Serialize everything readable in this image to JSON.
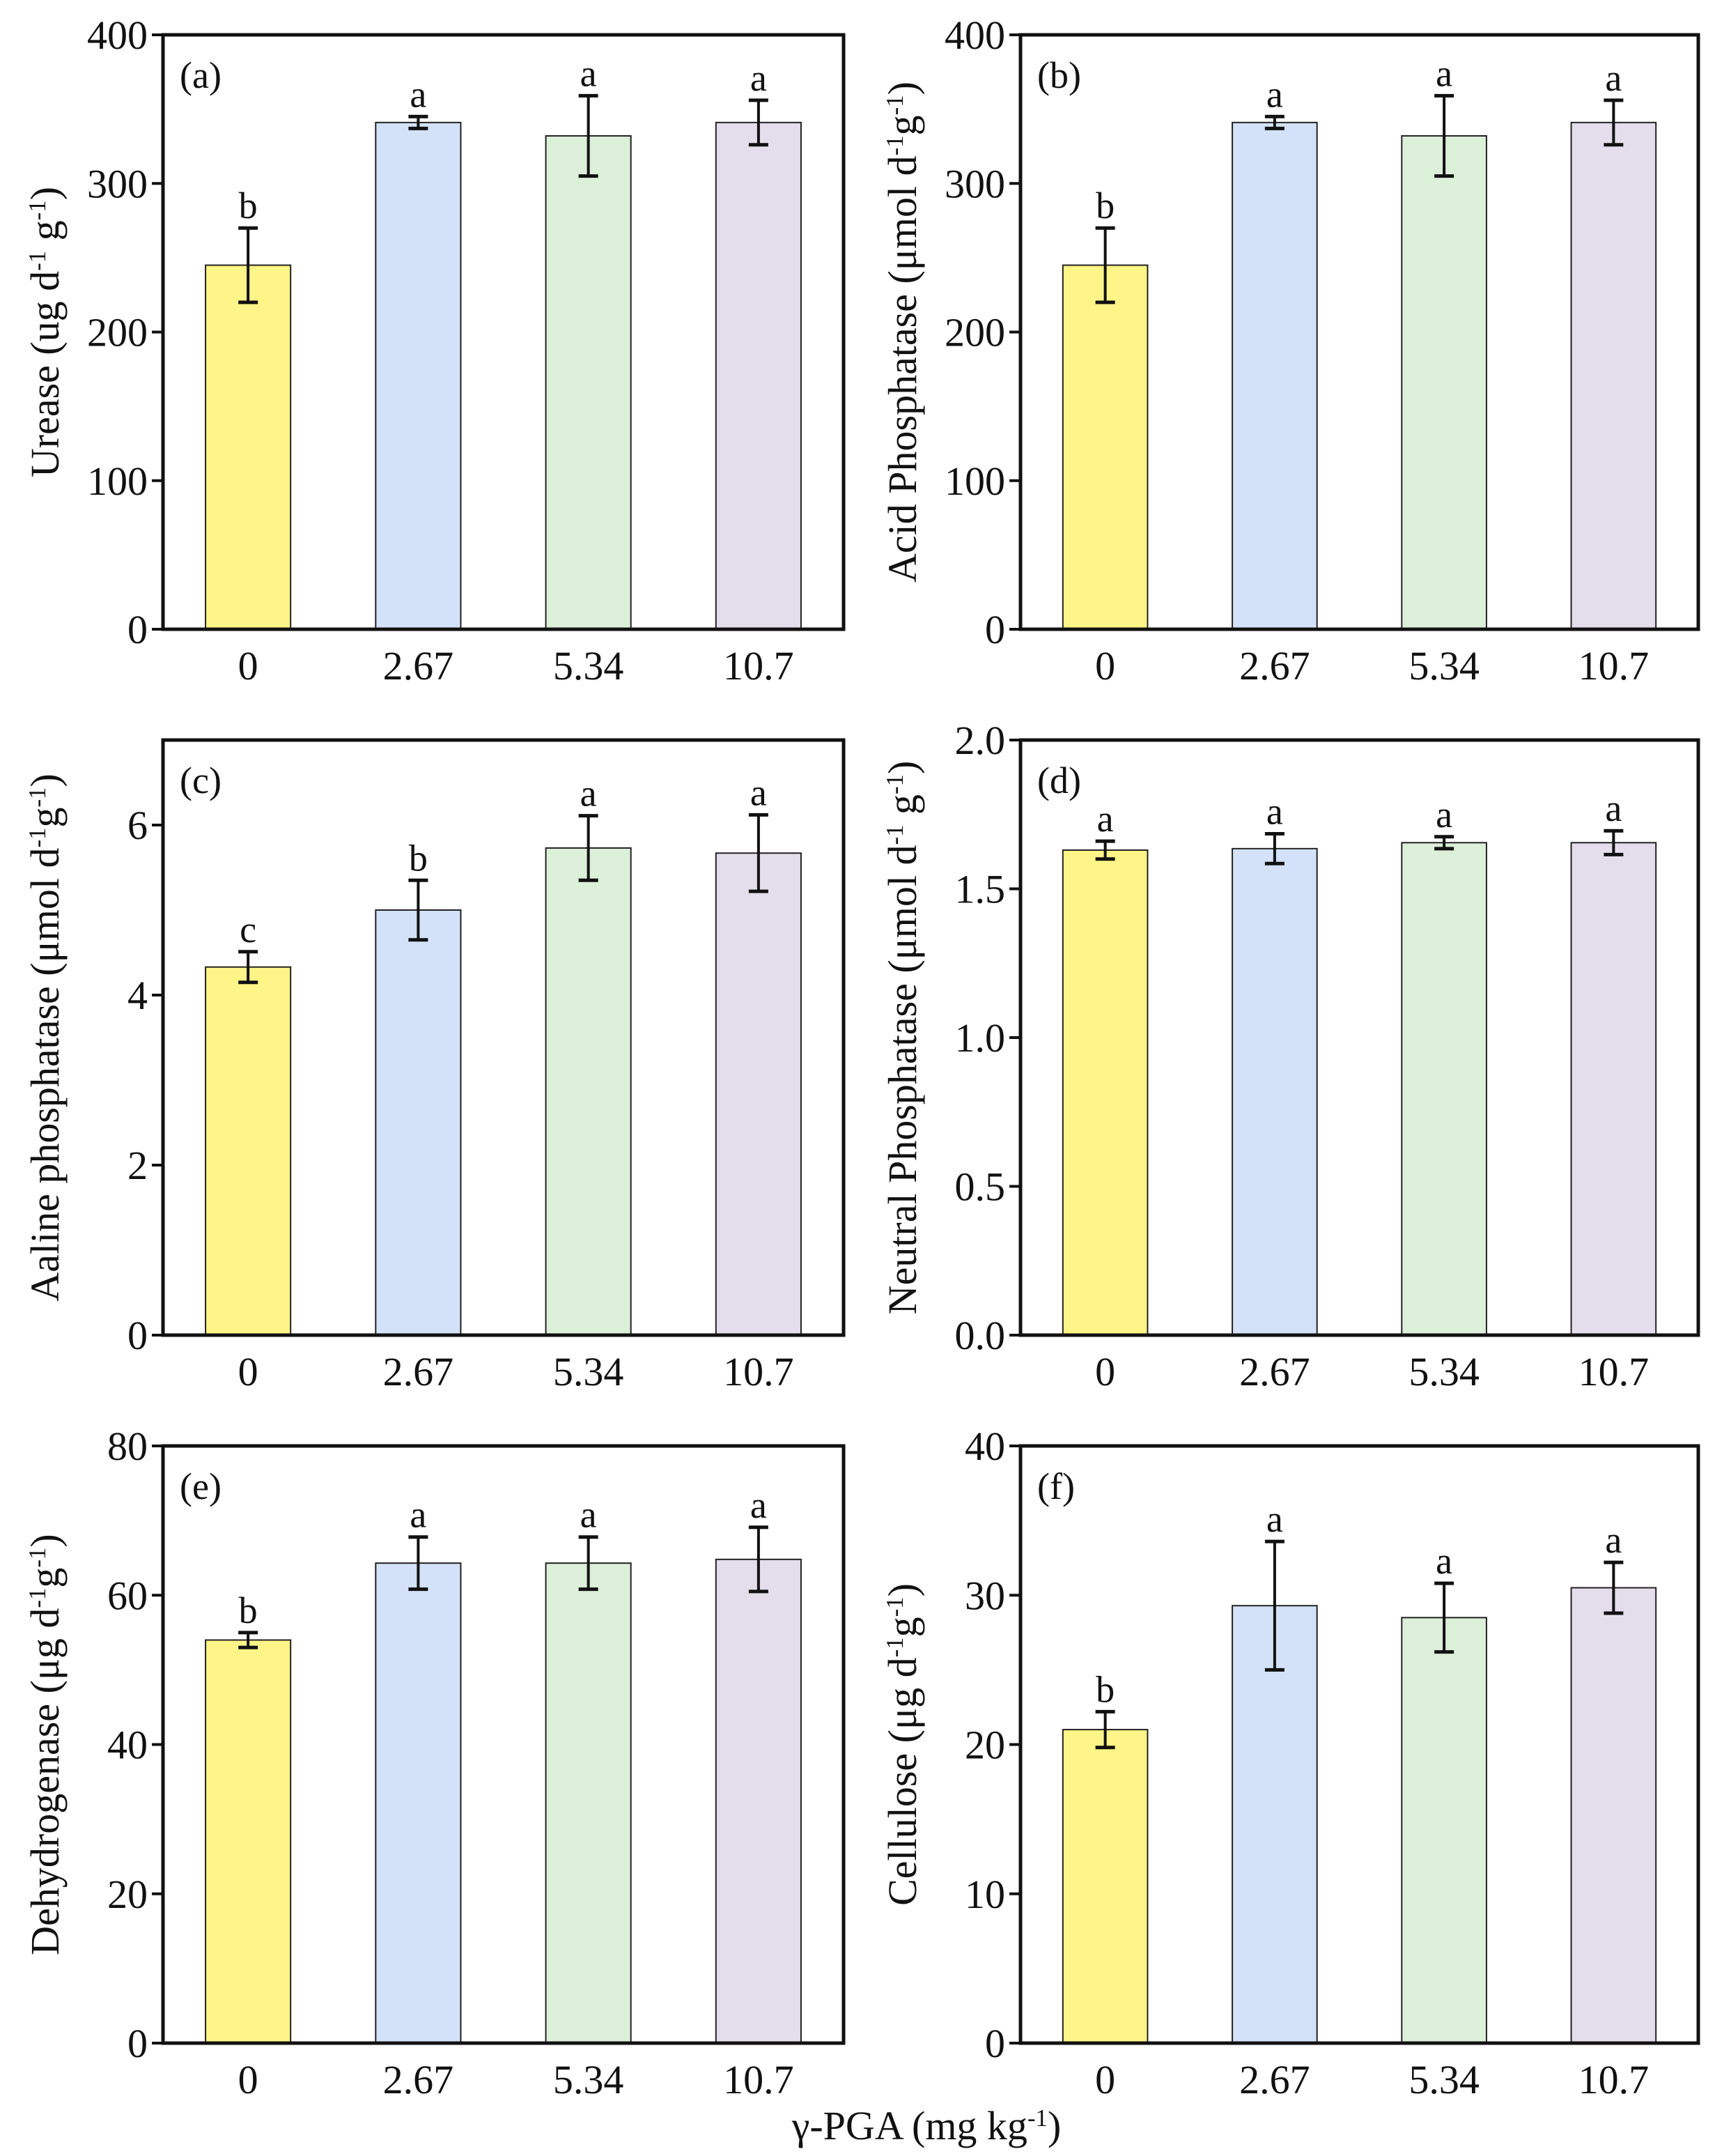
{
  "colors": [
    "#fdf587",
    "#d3e2f8",
    "#dcefd9",
    "#e4deec"
  ],
  "xlabel_parts": [
    [
      "γ-PGA (mg kg",
      0
    ],
    [
      "-1",
      1
    ],
    [
      ")",
      0
    ]
  ],
  "chart_data": [
    {
      "type": "bar",
      "panel_label": "(a)",
      "categories": [
        "0",
        "2.67",
        "5.34",
        "10.7"
      ],
      "values": [
        245,
        341,
        332,
        341
      ],
      "errors": [
        25,
        4,
        27,
        15
      ],
      "letters": [
        "b",
        "a",
        "a",
        "a"
      ],
      "ylim": [
        0,
        400
      ],
      "yticks": [
        0,
        100,
        200,
        300,
        400
      ],
      "ytick_labels": [
        "0",
        "100",
        "200",
        "300",
        "400"
      ],
      "ylabel_parts": [
        [
          "Urease (ug d",
          0
        ],
        [
          "-1",
          1
        ],
        [
          " g",
          0
        ],
        [
          "-1",
          1
        ],
        [
          ")",
          0
        ]
      ]
    },
    {
      "type": "bar",
      "panel_label": "(b)",
      "categories": [
        "0",
        "2.67",
        "5.34",
        "10.7"
      ],
      "values": [
        245,
        341,
        332,
        341
      ],
      "errors": [
        25,
        4,
        27,
        15
      ],
      "letters": [
        "b",
        "a",
        "a",
        "a"
      ],
      "ylim": [
        0,
        400
      ],
      "yticks": [
        0,
        100,
        200,
        300,
        400
      ],
      "ytick_labels": [
        "0",
        "100",
        "200",
        "300",
        "400"
      ],
      "ylabel_parts": [
        [
          "Acid Phosphatase (μmol d",
          0
        ],
        [
          "-1",
          1
        ],
        [
          "g",
          0
        ],
        [
          "-1",
          1
        ],
        [
          ")",
          0
        ]
      ]
    },
    {
      "type": "bar",
      "panel_label": "(c)",
      "categories": [
        "0",
        "2.67",
        "5.34",
        "10.7"
      ],
      "values": [
        4.33,
        5.0,
        5.73,
        5.67
      ],
      "errors": [
        0.18,
        0.35,
        0.38,
        0.45
      ],
      "letters": [
        "c",
        "b",
        "a",
        "a"
      ],
      "ylim": [
        0,
        7
      ],
      "yticks": [
        0,
        2,
        4,
        6
      ],
      "ytick_labels": [
        "0",
        "2",
        "4",
        "6"
      ],
      "ylabel_parts": [
        [
          "Aaline phosphatase (μmol d",
          0
        ],
        [
          "-1",
          1
        ],
        [
          "g",
          0
        ],
        [
          "-1",
          1
        ],
        [
          ")",
          0
        ]
      ]
    },
    {
      "type": "bar",
      "panel_label": "(d)",
      "categories": [
        "0",
        "2.67",
        "5.34",
        "10.7"
      ],
      "values": [
        1.63,
        1.635,
        1.655,
        1.655
      ],
      "errors": [
        0.03,
        0.05,
        0.02,
        0.04
      ],
      "letters": [
        "a",
        "a",
        "a",
        "a"
      ],
      "ylim": [
        0,
        2.0
      ],
      "yticks": [
        0,
        0.5,
        1.0,
        1.5,
        2.0
      ],
      "ytick_labels": [
        "0.0",
        "0.5",
        "1.0",
        "1.5",
        "2.0"
      ],
      "ylabel_parts": [
        [
          "Neutral Phosphatase (μmol d",
          0
        ],
        [
          "-1",
          1
        ],
        [
          " g",
          0
        ],
        [
          "-1",
          1
        ],
        [
          ")",
          0
        ]
      ]
    },
    {
      "type": "bar",
      "panel_label": "(e)",
      "categories": [
        "0",
        "2.67",
        "5.34",
        "10.7"
      ],
      "values": [
        54,
        64.3,
        64.3,
        64.8
      ],
      "errors": [
        1,
        3.5,
        3.5,
        4.3
      ],
      "letters": [
        "b",
        "a",
        "a",
        "a"
      ],
      "ylim": [
        0,
        80
      ],
      "yticks": [
        0,
        20,
        40,
        60,
        80
      ],
      "ytick_labels": [
        "0",
        "20",
        "40",
        "60",
        "80"
      ],
      "ylabel_parts": [
        [
          "Dehydrogenase (μg d",
          0
        ],
        [
          "-1",
          1
        ],
        [
          "g",
          0
        ],
        [
          "-1",
          1
        ],
        [
          ")",
          0
        ]
      ]
    },
    {
      "type": "bar",
      "panel_label": "(f)",
      "categories": [
        "0",
        "2.67",
        "5.34",
        "10.7"
      ],
      "values": [
        21,
        29.3,
        28.5,
        30.5
      ],
      "errors": [
        1.2,
        4.3,
        2.3,
        1.7
      ],
      "letters": [
        "b",
        "a",
        "a",
        "a"
      ],
      "ylim": [
        0,
        40
      ],
      "yticks": [
        0,
        10,
        20,
        30,
        40
      ],
      "ytick_labels": [
        "0",
        "10",
        "20",
        "30",
        "40"
      ],
      "ylabel_parts": [
        [
          "Cellulose  (μg d",
          0
        ],
        [
          "-1",
          1
        ],
        [
          "g",
          0
        ],
        [
          "-1",
          1
        ],
        [
          ")",
          0
        ]
      ]
    }
  ]
}
